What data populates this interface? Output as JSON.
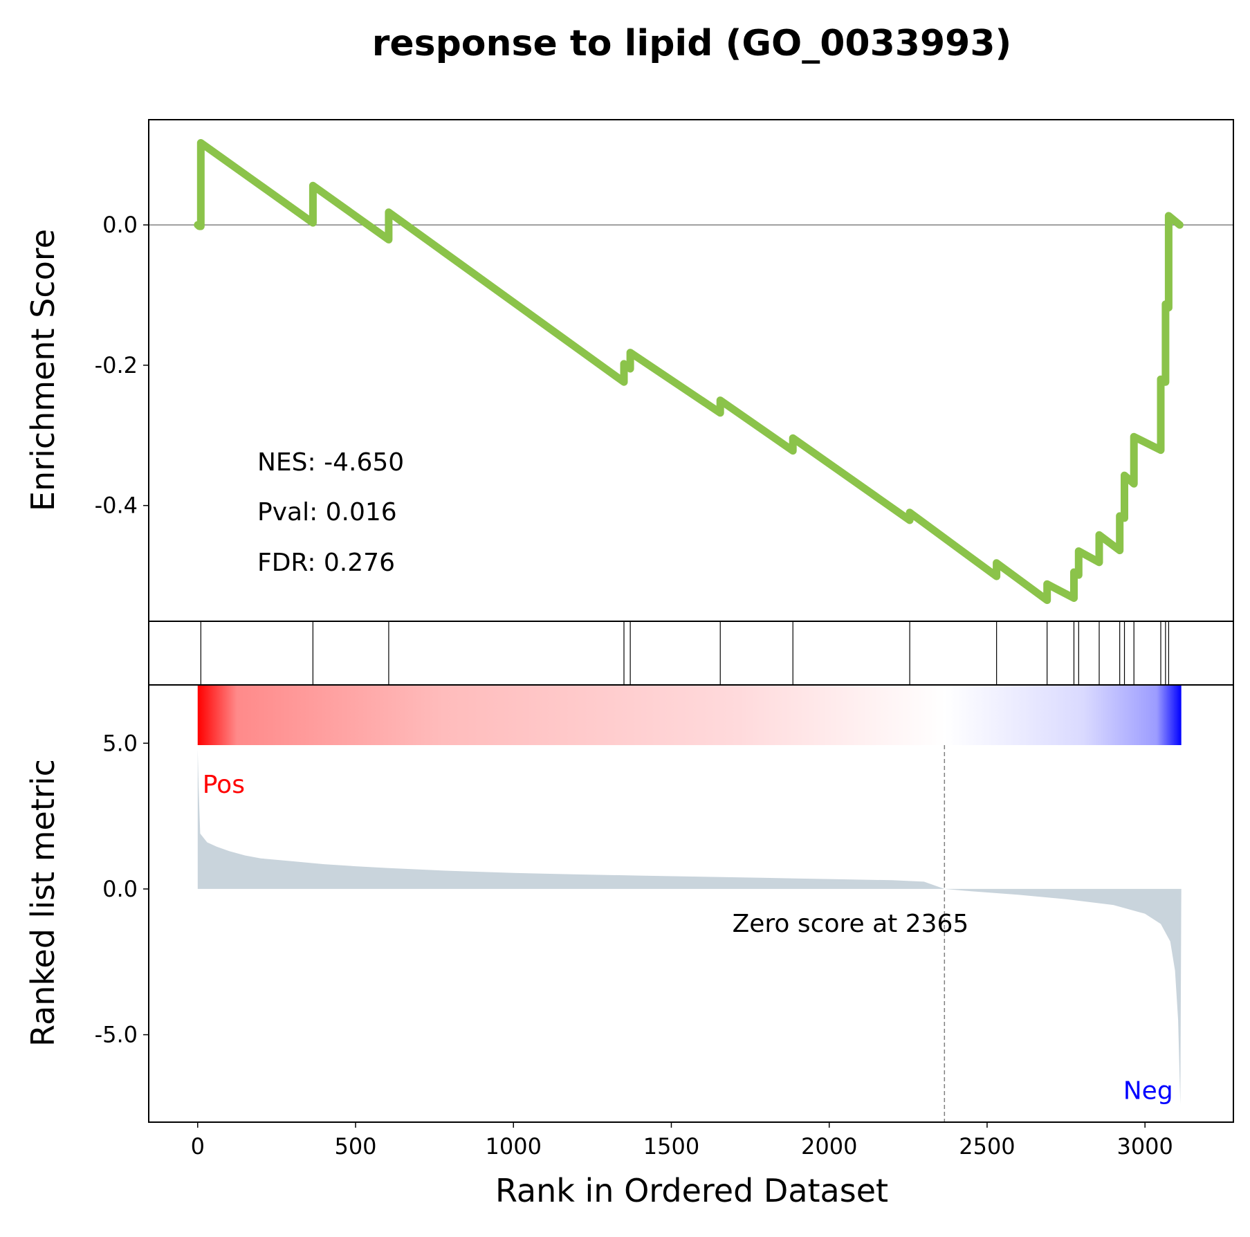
{
  "chart_data": {
    "type": "line",
    "title": "response to lipid (GO_0033993)",
    "xlabel": "Rank in Ordered Dataset",
    "ylabel_top": "Enrichment Score",
    "ylabel_bottom": "Ranked list metric",
    "xlim": [
      -155,
      3280
    ],
    "ylim_top": [
      -0.565,
      0.15
    ],
    "ylim_bottom": [
      -8.0,
      7.0
    ],
    "x_ticks": [
      0,
      500,
      1000,
      1500,
      2000,
      2500,
      3000
    ],
    "x_tick_labels": [
      "0",
      "500",
      "1000",
      "1500",
      "2000",
      "2500",
      "3000"
    ],
    "y_ticks_top": [
      0.0,
      -0.2,
      -0.4
    ],
    "y_tick_labels_top": [
      "0.0",
      "-0.2",
      "-0.4"
    ],
    "y_ticks_bottom": [
      5.0,
      0.0,
      -5.0
    ],
    "y_tick_labels_bottom": [
      "5.0",
      "0.0",
      "-5.0"
    ],
    "es_line_color": "#8bc34a",
    "metric_fill_color": "#c9d4dc",
    "hit_ranks": [
      10,
      365,
      605,
      1350,
      1370,
      1655,
      1885,
      2255,
      2530,
      2690,
      2775,
      2790,
      2855,
      2920,
      2935,
      2965,
      3050,
      3065,
      3075
    ],
    "es_points": [
      [
        0,
        0.0
      ],
      [
        5,
        -0.002
      ],
      [
        10,
        -0.002
      ],
      [
        10,
        0.117
      ],
      [
        365,
        0.003
      ],
      [
        365,
        0.056
      ],
      [
        605,
        -0.021
      ],
      [
        605,
        0.018
      ],
      [
        1350,
        -0.224
      ],
      [
        1350,
        -0.198
      ],
      [
        1370,
        -0.205
      ],
      [
        1370,
        -0.182
      ],
      [
        1655,
        -0.268
      ],
      [
        1655,
        -0.25
      ],
      [
        1885,
        -0.322
      ],
      [
        1885,
        -0.304
      ],
      [
        2255,
        -0.421
      ],
      [
        2255,
        -0.41
      ],
      [
        2530,
        -0.501
      ],
      [
        2530,
        -0.482
      ],
      [
        2690,
        -0.535
      ],
      [
        2690,
        -0.512
      ],
      [
        2775,
        -0.532
      ],
      [
        2775,
        -0.495
      ],
      [
        2790,
        -0.499
      ],
      [
        2790,
        -0.465
      ],
      [
        2855,
        -0.481
      ],
      [
        2855,
        -0.442
      ],
      [
        2920,
        -0.464
      ],
      [
        2920,
        -0.415
      ],
      [
        2935,
        -0.418
      ],
      [
        2935,
        -0.357
      ],
      [
        2965,
        -0.369
      ],
      [
        2965,
        -0.302
      ],
      [
        3050,
        -0.321
      ],
      [
        3050,
        -0.22
      ],
      [
        3065,
        -0.224
      ],
      [
        3065,
        -0.113
      ],
      [
        3075,
        -0.118
      ],
      [
        3075,
        0.013
      ],
      [
        3110,
        0.0
      ]
    ],
    "metric_points": [
      [
        0,
        4.8
      ],
      [
        3,
        3.5
      ],
      [
        8,
        1.9
      ],
      [
        30,
        1.6
      ],
      [
        60,
        1.45
      ],
      [
        100,
        1.3
      ],
      [
        150,
        1.15
      ],
      [
        200,
        1.05
      ],
      [
        300,
        0.95
      ],
      [
        400,
        0.85
      ],
      [
        500,
        0.78
      ],
      [
        600,
        0.72
      ],
      [
        800,
        0.62
      ],
      [
        1000,
        0.55
      ],
      [
        1200,
        0.5
      ],
      [
        1400,
        0.46
      ],
      [
        1600,
        0.42
      ],
      [
        1800,
        0.38
      ],
      [
        2000,
        0.34
      ],
      [
        2200,
        0.3
      ],
      [
        2300,
        0.25
      ],
      [
        2365,
        0.0
      ],
      [
        2450,
        -0.08
      ],
      [
        2600,
        -0.2
      ],
      [
        2750,
        -0.35
      ],
      [
        2900,
        -0.55
      ],
      [
        3000,
        -0.85
      ],
      [
        3050,
        -1.2
      ],
      [
        3080,
        -1.8
      ],
      [
        3095,
        -2.8
      ],
      [
        3105,
        -4.5
      ],
      [
        3112,
        -7.4
      ],
      [
        3115,
        0.0
      ]
    ],
    "zero_cross_rank": 2365,
    "max_rank": 3115,
    "heatbar": {
      "pos_color": "#ff0000",
      "mid_color": "#ffffff",
      "neg_color": "#0000ff"
    },
    "stats": {
      "nes": "NES: -4.650",
      "pval": "Pval: 0.016",
      "fdr": "FDR: 0.276"
    },
    "zero_score_label": "Zero score at 2365",
    "pos_label": "Pos",
    "neg_label": "Neg",
    "pos_label_color": "#ff0000",
    "neg_label_color": "#0000ff"
  }
}
